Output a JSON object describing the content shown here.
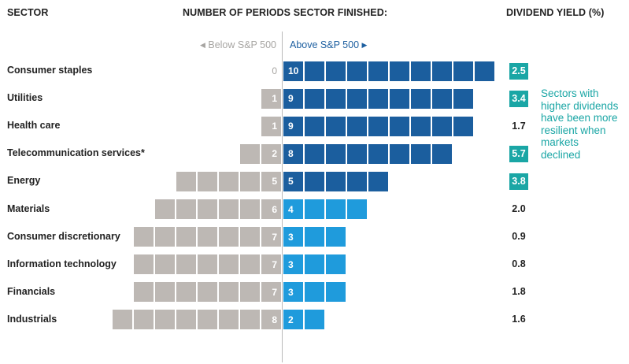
{
  "headers": {
    "sector": "SECTOR",
    "periods": "NUMBER OF PERIODS SECTOR FINISHED:",
    "yield": "DIVIDEND YIELD (%)"
  },
  "direction": {
    "below": "Below S&P 500",
    "above": "Above S&P 500",
    "below_arrow": "◀",
    "above_arrow": "▶"
  },
  "note": "Sectors with higher dividends have been more resilient when markets declined",
  "colors": {
    "below": "#bdb8b4",
    "above_dark": "#1b5e9e",
    "above_light": "#1f9bdc",
    "yield_highlight": "#1aa6a5"
  },
  "chart_data": {
    "type": "bar",
    "categories": [
      "Consumer staples",
      "Utilities",
      "Health care",
      "Telecommunication services*",
      "Energy",
      "Materials",
      "Consumer discretionary",
      "Information technology",
      "Financials",
      "Industrials"
    ],
    "series": [
      {
        "name": "Below S&P 500",
        "values": [
          0,
          1,
          1,
          2,
          5,
          6,
          7,
          7,
          7,
          8
        ]
      },
      {
        "name": "Above S&P 500",
        "values": [
          10,
          9,
          9,
          8,
          5,
          4,
          3,
          3,
          3,
          2
        ]
      }
    ],
    "dividend_yield": [
      "2.5",
      "3.4",
      "1.7",
      "5.7",
      "3.8",
      "2.0",
      "0.9",
      "0.8",
      "1.8",
      "1.6"
    ],
    "dividend_yield_highlighted": [
      true,
      true,
      false,
      true,
      true,
      false,
      false,
      false,
      false,
      false
    ],
    "above_shade": [
      "dark",
      "dark",
      "dark",
      "dark",
      "dark",
      "light",
      "light",
      "light",
      "light",
      "light"
    ]
  }
}
